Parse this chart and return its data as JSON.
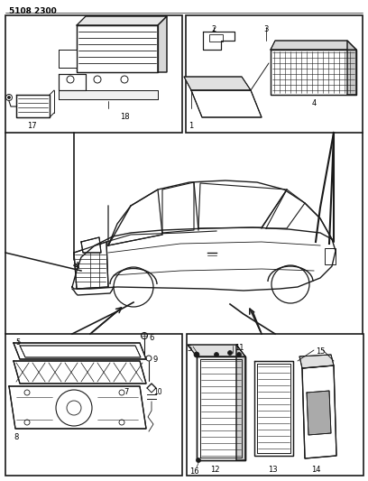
{
  "title": "5108 2300",
  "bg_color": "#ffffff",
  "fig_width": 4.08,
  "fig_height": 5.33,
  "dpi": 100,
  "line_color": "#1a1a1a"
}
